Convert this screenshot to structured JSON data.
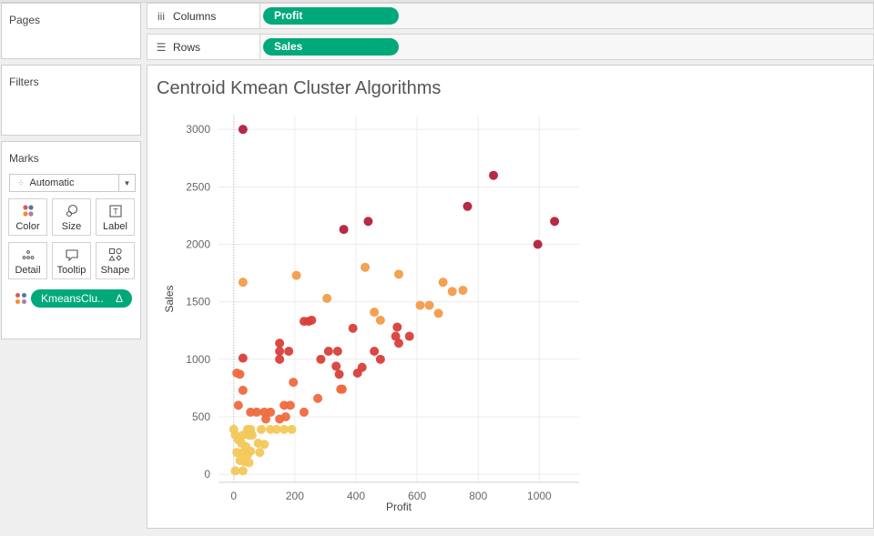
{
  "pages": {
    "title": "Pages"
  },
  "filters": {
    "title": "Filters"
  },
  "marks": {
    "title": "Marks",
    "mark_type": "Automatic",
    "cards": [
      {
        "label": "Color",
        "icon": "color-icon"
      },
      {
        "label": "Size",
        "icon": "size-icon"
      },
      {
        "label": "Label",
        "icon": "label-icon"
      },
      {
        "label": "Detail",
        "icon": "detail-icon"
      },
      {
        "label": "Tooltip",
        "icon": "tooltip-icon"
      },
      {
        "label": "Shape",
        "icon": "shape-icon"
      }
    ],
    "color_pill": {
      "label": "KmeansClu..",
      "delta": "Δ"
    }
  },
  "shelves": {
    "columns": {
      "label": "Columns",
      "pill": "Profit"
    },
    "rows": {
      "label": "Rows",
      "pill": "Sales"
    }
  },
  "colors": {
    "accent": "#00a97a"
  },
  "chart_data": {
    "type": "scatter",
    "title": "Centroid Kmean Cluster Algorithms",
    "xlabel": "Profit",
    "ylabel": "Sales",
    "xlim": [
      -50,
      1130
    ],
    "ylim": [
      -70,
      3120
    ],
    "xticks": [
      0,
      200,
      400,
      600,
      800,
      1000
    ],
    "yticks": [
      0,
      500,
      1000,
      1500,
      2000,
      2500,
      3000
    ],
    "grid": true,
    "series": [
      {
        "color": "#b31f3b",
        "points": [
          [
            30,
            3000
          ],
          [
            850,
            2600
          ],
          [
            765,
            2330
          ],
          [
            1050,
            2200
          ],
          [
            440,
            2200
          ],
          [
            360,
            2130
          ],
          [
            995,
            2000
          ]
        ]
      },
      {
        "color": "#f29c49",
        "points": [
          [
            30,
            1670
          ],
          [
            205,
            1730
          ],
          [
            430,
            1800
          ],
          [
            540,
            1740
          ],
          [
            305,
            1530
          ],
          [
            685,
            1670
          ],
          [
            610,
            1470
          ],
          [
            640,
            1470
          ],
          [
            715,
            1590
          ],
          [
            750,
            1600
          ],
          [
            460,
            1410
          ],
          [
            480,
            1340
          ],
          [
            670,
            1400
          ]
        ]
      },
      {
        "color": "#d93f3a",
        "points": [
          [
            230,
            1330
          ],
          [
            245,
            1330
          ],
          [
            255,
            1340
          ],
          [
            390,
            1270
          ],
          [
            535,
            1280
          ],
          [
            530,
            1200
          ],
          [
            575,
            1200
          ],
          [
            540,
            1140
          ],
          [
            150,
            1140
          ],
          [
            150,
            1070
          ],
          [
            180,
            1070
          ],
          [
            310,
            1070
          ],
          [
            340,
            1070
          ],
          [
            460,
            1070
          ],
          [
            30,
            1010
          ],
          [
            150,
            1000
          ],
          [
            285,
            1000
          ],
          [
            480,
            1000
          ],
          [
            335,
            940
          ],
          [
            420,
            930
          ],
          [
            405,
            880
          ],
          [
            345,
            870
          ]
        ]
      },
      {
        "color": "#ef6a3e",
        "points": [
          [
            10,
            880
          ],
          [
            20,
            870
          ],
          [
            195,
            800
          ],
          [
            350,
            740
          ],
          [
            355,
            740
          ],
          [
            30,
            730
          ],
          [
            275,
            660
          ],
          [
            15,
            600
          ],
          [
            165,
            600
          ],
          [
            185,
            600
          ],
          [
            55,
            540
          ],
          [
            75,
            540
          ],
          [
            100,
            540
          ],
          [
            120,
            540
          ],
          [
            230,
            540
          ],
          [
            170,
            500
          ],
          [
            105,
            480
          ],
          [
            150,
            480
          ]
        ]
      },
      {
        "color": "#f2c85b",
        "points": [
          [
            0,
            390
          ],
          [
            45,
            390
          ],
          [
            55,
            390
          ],
          [
            90,
            390
          ],
          [
            120,
            390
          ],
          [
            140,
            390
          ],
          [
            165,
            390
          ],
          [
            190,
            390
          ],
          [
            5,
            340
          ],
          [
            30,
            340
          ],
          [
            50,
            340
          ],
          [
            60,
            340
          ],
          [
            15,
            300
          ],
          [
            25,
            270
          ],
          [
            80,
            270
          ],
          [
            100,
            260
          ],
          [
            40,
            240
          ],
          [
            10,
            190
          ],
          [
            30,
            190
          ],
          [
            55,
            200
          ],
          [
            85,
            190
          ],
          [
            45,
            170
          ],
          [
            20,
            120
          ],
          [
            5,
            30
          ],
          [
            30,
            30
          ],
          [
            35,
            110
          ],
          [
            50,
            100
          ]
        ]
      }
    ]
  }
}
